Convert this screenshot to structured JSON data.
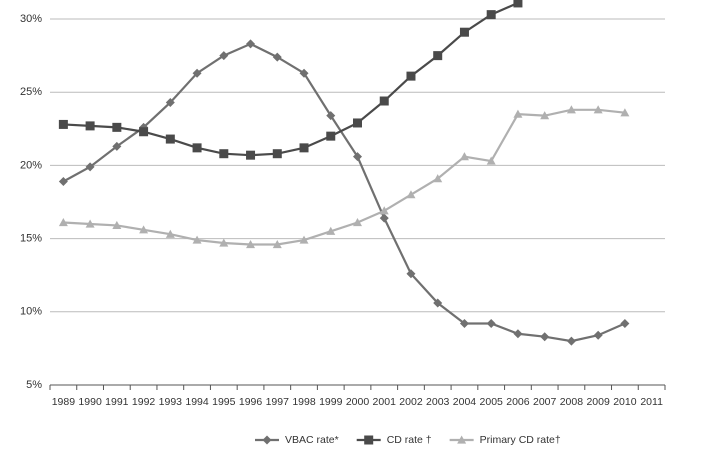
{
  "chart_data": {
    "type": "line",
    "categories": [
      "1989",
      "1990",
      "1991",
      "1992",
      "1993",
      "1994",
      "1995",
      "1996",
      "1997",
      "1998",
      "1999",
      "2000",
      "2001",
      "2002",
      "2003",
      "2004",
      "2005",
      "2006",
      "2007",
      "2008",
      "2009",
      "2010",
      "2011"
    ],
    "series": [
      {
        "name": "VBAC rate*",
        "color": "#707070",
        "marker": "diamond",
        "values": [
          18.9,
          19.9,
          21.3,
          22.6,
          24.3,
          26.3,
          27.5,
          28.3,
          27.4,
          26.3,
          23.4,
          20.6,
          16.4,
          12.6,
          10.6,
          9.2,
          9.2,
          8.5,
          8.3,
          8.0,
          8.4,
          9.2,
          null
        ]
      },
      {
        "name": "CD rate †",
        "color": "#4a4a4a",
        "marker": "square",
        "values": [
          22.8,
          22.7,
          22.6,
          22.3,
          21.8,
          21.2,
          20.8,
          20.7,
          20.8,
          21.2,
          22.0,
          22.9,
          24.4,
          26.1,
          27.5,
          29.1,
          30.3,
          31.1,
          null,
          null,
          null,
          null,
          null
        ]
      },
      {
        "name": "Primary CD rate†",
        "color": "#b0b0b0",
        "marker": "triangle",
        "values": [
          16.1,
          16.0,
          15.9,
          15.6,
          15.3,
          14.9,
          14.7,
          14.6,
          14.6,
          14.9,
          15.5,
          16.1,
          16.9,
          18.0,
          19.1,
          20.6,
          20.3,
          23.5,
          23.4,
          23.8,
          23.8,
          23.6,
          null
        ]
      }
    ],
    "ylim": [
      5,
      31.3
    ],
    "yticks": [
      {
        "value": 5,
        "label": "5%"
      },
      {
        "value": 10,
        "label": "10%"
      },
      {
        "value": 15,
        "label": "15%"
      },
      {
        "value": 20,
        "label": "20%"
      },
      {
        "value": 25,
        "label": "25%"
      },
      {
        "value": 30,
        "label": "30%"
      }
    ],
    "grid": true,
    "legend": "bottom"
  }
}
